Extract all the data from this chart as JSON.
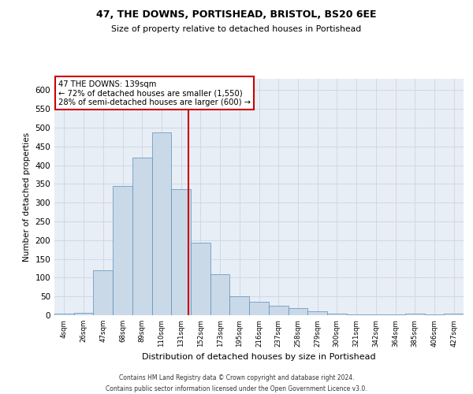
{
  "title1": "47, THE DOWNS, PORTISHEAD, BRISTOL, BS20 6EE",
  "title2": "Size of property relative to detached houses in Portishead",
  "xlabel": "Distribution of detached houses by size in Portishead",
  "ylabel": "Number of detached properties",
  "categories": [
    "4sqm",
    "26sqm",
    "47sqm",
    "68sqm",
    "89sqm",
    "110sqm",
    "131sqm",
    "152sqm",
    "173sqm",
    "195sqm",
    "216sqm",
    "237sqm",
    "258sqm",
    "279sqm",
    "300sqm",
    "321sqm",
    "342sqm",
    "364sqm",
    "385sqm",
    "406sqm",
    "427sqm"
  ],
  "values": [
    5,
    7,
    120,
    345,
    420,
    487,
    337,
    193,
    110,
    50,
    35,
    25,
    18,
    10,
    5,
    3,
    3,
    2,
    5,
    3,
    5
  ],
  "bar_color": "#c9d9e8",
  "bar_edge_color": "#5b8db8",
  "property_label": "47 THE DOWNS: 139sqm",
  "annotation_line1": "← 72% of detached houses are smaller (1,550)",
  "annotation_line2": "28% of semi-detached houses are larger (600) →",
  "vline_color": "#cc0000",
  "box_color": "#ffffff",
  "box_edge_color": "#cc0000",
  "grid_color": "#d0d8e8",
  "background_color": "#e8eef5",
  "footer_line1": "Contains HM Land Registry data © Crown copyright and database right 2024.",
  "footer_line2": "Contains public sector information licensed under the Open Government Licence v3.0.",
  "ylim": [
    0,
    630
  ],
  "yticks": [
    0,
    50,
    100,
    150,
    200,
    250,
    300,
    350,
    400,
    450,
    500,
    550,
    600
  ]
}
